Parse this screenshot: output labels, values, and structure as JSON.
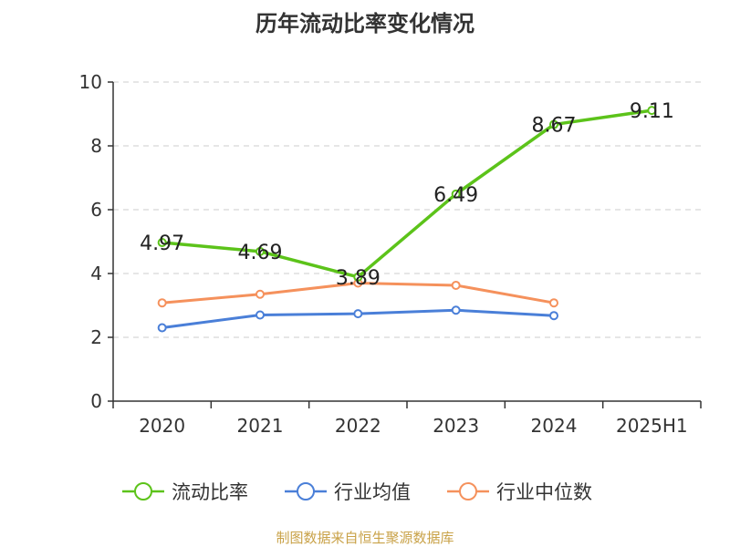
{
  "title": "历年流动比率变化情况",
  "source": "制图数据来自恒生聚源数据库",
  "chart_data": {
    "type": "line",
    "categories": [
      "2020",
      "2021",
      "2022",
      "2023",
      "2024",
      "2025H1"
    ],
    "ylim": [
      0,
      10
    ],
    "yticks": [
      0,
      2,
      4,
      6,
      8,
      10
    ],
    "grid": true,
    "legend_position": "bottom",
    "series": [
      {
        "name": "流动比率",
        "color": "#5cc31a",
        "values": [
          4.97,
          4.69,
          3.89,
          6.49,
          8.67,
          9.11
        ],
        "labels": [
          "4.97",
          "4.69",
          "3.89",
          "6.49",
          "8.67",
          "9.11"
        ]
      },
      {
        "name": "行业均值",
        "color": "#4a7fd8",
        "values": [
          2.3,
          2.7,
          2.74,
          2.85,
          2.68,
          null
        ]
      },
      {
        "name": "行业中位数",
        "color": "#f5915c",
        "values": [
          3.08,
          3.35,
          3.7,
          3.63,
          3.08,
          null
        ]
      }
    ]
  }
}
